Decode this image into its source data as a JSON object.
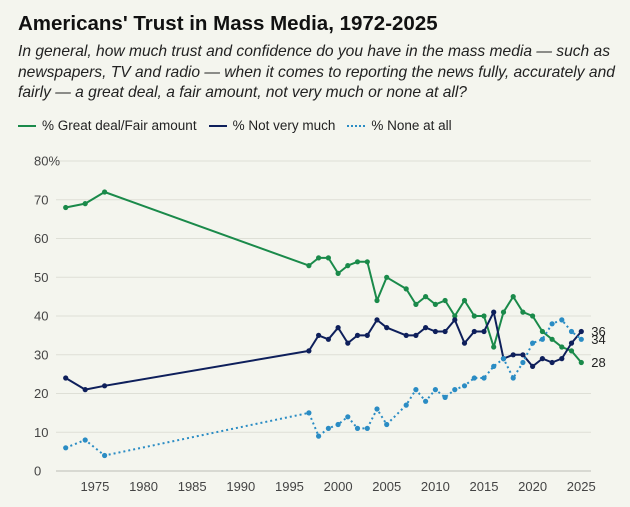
{
  "chart_data": {
    "type": "line",
    "title": "Americans' Trust in Mass Media, 1972-2025",
    "subtitle": "In general, how much trust and confidence do you have in the mass media — such as newspapers, TV and radio — when it comes to reporting the news fully, accurately and fairly — a great deal, a fair amount, not very much or none at all?",
    "xlabel": "",
    "ylabel": "",
    "xlim": [
      1971,
      2026
    ],
    "ylim": [
      0,
      80
    ],
    "x_ticks": [
      1975,
      1980,
      1985,
      1990,
      1995,
      2000,
      2005,
      2010,
      2015,
      2020,
      2025
    ],
    "y_ticks": [
      0,
      10,
      20,
      30,
      40,
      50,
      60,
      70,
      80
    ],
    "y_tick_labels": [
      "0",
      "10",
      "20",
      "30",
      "40",
      "50",
      "60",
      "70",
      "80%"
    ],
    "grid": true,
    "legend_position": "top-left",
    "series": [
      {
        "name": "% Great deal/Fair amount",
        "color": "#1a8a4a",
        "style": "solid",
        "end_label": "28",
        "x": [
          1972,
          1974,
          1976,
          1997,
          1998,
          1999,
          2000,
          2001,
          2002,
          2003,
          2004,
          2005,
          2007,
          2008,
          2009,
          2010,
          2011,
          2012,
          2013,
          2014,
          2015,
          2016,
          2017,
          2018,
          2019,
          2020,
          2021,
          2022,
          2023,
          2024,
          2025
        ],
        "values": [
          68,
          69,
          72,
          53,
          55,
          55,
          51,
          53,
          54,
          54,
          44,
          50,
          47,
          43,
          45,
          43,
          44,
          40,
          44,
          40,
          40,
          32,
          41,
          45,
          41,
          40,
          36,
          34,
          32,
          31,
          28
        ]
      },
      {
        "name": "% Not very much",
        "color": "#0e1f5b",
        "style": "solid",
        "end_label": "36",
        "x": [
          1972,
          1974,
          1976,
          1997,
          1998,
          1999,
          2000,
          2001,
          2002,
          2003,
          2004,
          2005,
          2007,
          2008,
          2009,
          2010,
          2011,
          2012,
          2013,
          2014,
          2015,
          2016,
          2017,
          2018,
          2019,
          2020,
          2021,
          2022,
          2023,
          2024,
          2025
        ],
        "values": [
          24,
          21,
          22,
          31,
          35,
          34,
          37,
          33,
          35,
          35,
          39,
          37,
          35,
          35,
          37,
          36,
          36,
          39,
          33,
          36,
          36,
          41,
          29,
          30,
          30,
          27,
          29,
          28,
          29,
          33,
          36
        ]
      },
      {
        "name": "% None at all",
        "color": "#2a8cc4",
        "style": "dotted",
        "end_label": "34",
        "x": [
          1972,
          1974,
          1976,
          1997,
          1998,
          1999,
          2000,
          2001,
          2002,
          2003,
          2004,
          2005,
          2007,
          2008,
          2009,
          2010,
          2011,
          2012,
          2013,
          2014,
          2015,
          2016,
          2017,
          2018,
          2019,
          2020,
          2021,
          2022,
          2023,
          2024,
          2025
        ],
        "values": [
          6,
          8,
          4,
          15,
          9,
          11,
          12,
          14,
          11,
          11,
          16,
          12,
          17,
          21,
          18,
          21,
          19,
          21,
          22,
          24,
          24,
          27,
          29,
          24,
          28,
          33,
          34,
          38,
          39,
          36,
          34
        ]
      }
    ]
  }
}
